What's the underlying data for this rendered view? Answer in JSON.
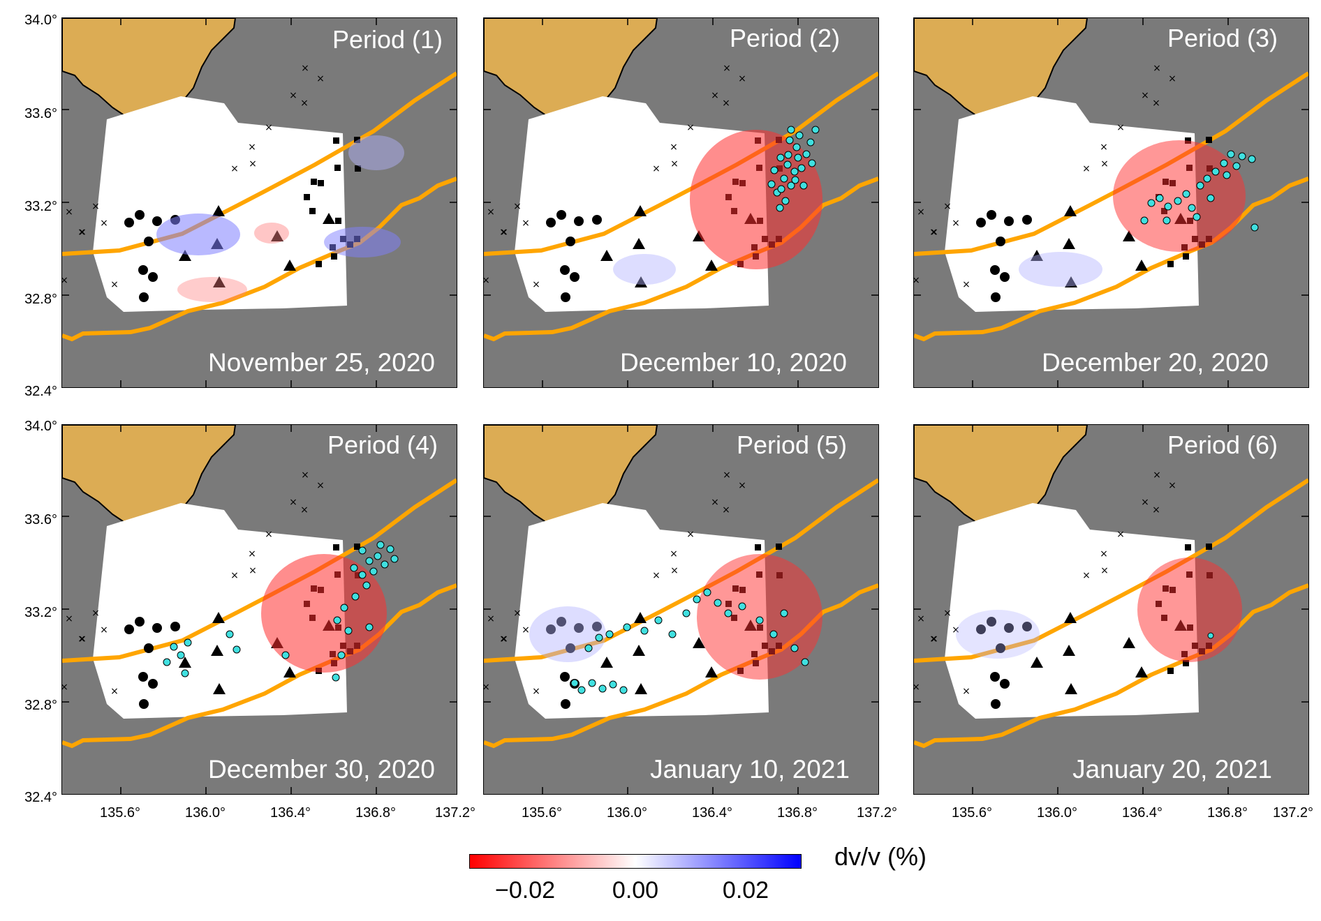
{
  "panels": [
    {
      "id": "p1",
      "period": "Period (1)",
      "date": "November 25, 2020"
    },
    {
      "id": "p2",
      "period": "Period (2)",
      "date": "December 10, 2020"
    },
    {
      "id": "p3",
      "period": "Period (3)",
      "date": "December 20, 2020"
    },
    {
      "id": "p4",
      "period": "Period (4)",
      "date": "December 30, 2020"
    },
    {
      "id": "p5",
      "period": "Period (5)",
      "date": "January 10, 2021"
    },
    {
      "id": "p6",
      "period": "Period (6)",
      "date": "January 20, 2021"
    }
  ],
  "latitude_ticks": [
    "34.0°",
    "33.6°",
    "33.2°",
    "32.8°",
    "32.4°"
  ],
  "longitude_ticks": [
    "135.6°",
    "136.0°",
    "136.4°",
    "136.8°",
    "137.2°"
  ],
  "colorbar": {
    "title": "dv/v (%)",
    "ticks": [
      "−0.02",
      "0.00",
      "0.02"
    ],
    "range": [
      -0.03,
      0.03
    ],
    "colors": {
      "negative": "#ff0000",
      "zero": "#ffffff",
      "positive": "#0000ff"
    }
  },
  "colors": {
    "ocean": "#7a7a7a",
    "land": "#dcac54",
    "trench_line": "#ffa500",
    "event_marker": "#40e0e0"
  }
}
